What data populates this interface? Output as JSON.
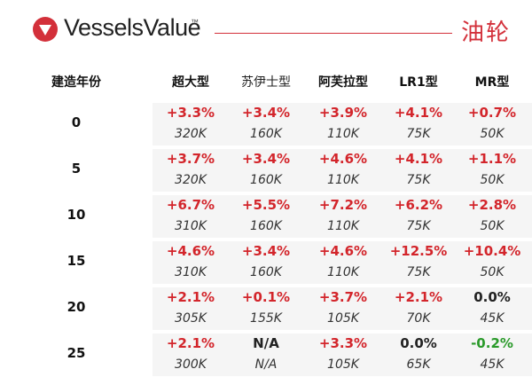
{
  "brand": {
    "name": "VesselsValue",
    "tm": "™",
    "section_title": "油轮"
  },
  "table": {
    "age_header": "建造年份",
    "columns": [
      "超大型",
      "苏伊士型",
      "阿芙拉型",
      "LR1型",
      "MR型"
    ],
    "rows": [
      {
        "age": "0",
        "pct": [
          "+3.3%",
          "+3.4%",
          "+3.9%",
          "+4.1%",
          "+0.7%"
        ],
        "val": [
          "320K",
          "160K",
          "110K",
          "75K",
          "50K"
        ]
      },
      {
        "age": "5",
        "pct": [
          "+3.7%",
          "+3.4%",
          "+4.6%",
          "+4.1%",
          "+1.1%"
        ],
        "val": [
          "320K",
          "160K",
          "110K",
          "75K",
          "50K"
        ]
      },
      {
        "age": "10",
        "pct": [
          "+6.7%",
          "+5.5%",
          "+7.2%",
          "+6.2%",
          "+2.8%"
        ],
        "val": [
          "310K",
          "160K",
          "110K",
          "75K",
          "50K"
        ]
      },
      {
        "age": "15",
        "pct": [
          "+4.6%",
          "+3.4%",
          "+4.6%",
          "+12.5%",
          "+10.4%"
        ],
        "val": [
          "310K",
          "160K",
          "110K",
          "75K",
          "50K"
        ]
      },
      {
        "age": "20",
        "pct": [
          "+2.1%",
          "+0.1%",
          "+3.7%",
          "+2.1%",
          "0.0%"
        ],
        "val": [
          "305K",
          "155K",
          "105K",
          "70K",
          "45K"
        ]
      },
      {
        "age": "25",
        "pct": [
          "+2.1%",
          "N/A",
          "+3.3%",
          "0.0%",
          "-0.2%"
        ],
        "val": [
          "300K",
          "N/A",
          "105K",
          "65K",
          "45K"
        ]
      }
    ]
  },
  "colors": {
    "accent": "#d3303a",
    "positive": "#d3252b",
    "negative": "#2a9a2a",
    "neutral": "#222222"
  }
}
